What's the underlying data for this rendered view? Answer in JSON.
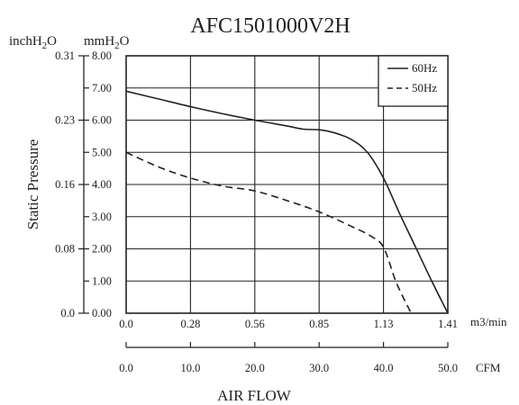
{
  "chart_data": {
    "type": "line",
    "title": "AFC1501000V2H",
    "ylabel": "Static Pressure",
    "xlabel": "AIR FLOW",
    "units": {
      "inch_prefix": "inchH",
      "mm_prefix": "mmH",
      "h2o_sub": "2",
      "h2o_tail": "O",
      "m3": "m3/min",
      "cfm": "CFM"
    },
    "y_mm_ticks": [
      "8.00",
      "7.00",
      "6.00",
      "5.00",
      "4.00",
      "3.00",
      "2.00",
      "1.00",
      "0.00"
    ],
    "y_mm_range": [
      0,
      8
    ],
    "y_inch_ticks": [
      {
        "label": "0.31",
        "mm": 8
      },
      {
        "label": "0.23",
        "mm": 6
      },
      {
        "label": "0.16",
        "mm": 4
      },
      {
        "label": "0.08",
        "mm": 2
      },
      {
        "label": "0.0",
        "mm": 0
      }
    ],
    "x_m3_ticks": [
      "0.0",
      "0.28",
      "0.56",
      "0.85",
      "1.13",
      "1.41"
    ],
    "x_m3_range": [
      0,
      1.41
    ],
    "x_cfm_ticks": [
      "0.0",
      "10.0",
      "20.0",
      "30.0",
      "40.0",
      "50.0"
    ],
    "x_cfm_range": [
      0,
      50
    ],
    "grid": true,
    "legend_position": "top-right",
    "series": [
      {
        "name": "60Hz",
        "style": "solid",
        "x_cfm": [
          0,
          5,
          10,
          15,
          20,
          25,
          27.5,
          30,
          32.5,
          35,
          37.5,
          40,
          42.5,
          45,
          47.5,
          50
        ],
        "y_mm": [
          6.9,
          6.66,
          6.42,
          6.2,
          6.0,
          5.82,
          5.72,
          5.7,
          5.6,
          5.4,
          5.0,
          4.2,
          3.1,
          2.05,
          1.0,
          0.0
        ]
      },
      {
        "name": "50Hz",
        "style": "dashed",
        "x_cfm": [
          0,
          5,
          10,
          15,
          20,
          25,
          30,
          35,
          38,
          40,
          42,
          44.3
        ],
        "y_mm": [
          5.0,
          4.55,
          4.2,
          3.95,
          3.8,
          3.5,
          3.15,
          2.7,
          2.4,
          2.05,
          0.95,
          0.0
        ]
      }
    ]
  }
}
